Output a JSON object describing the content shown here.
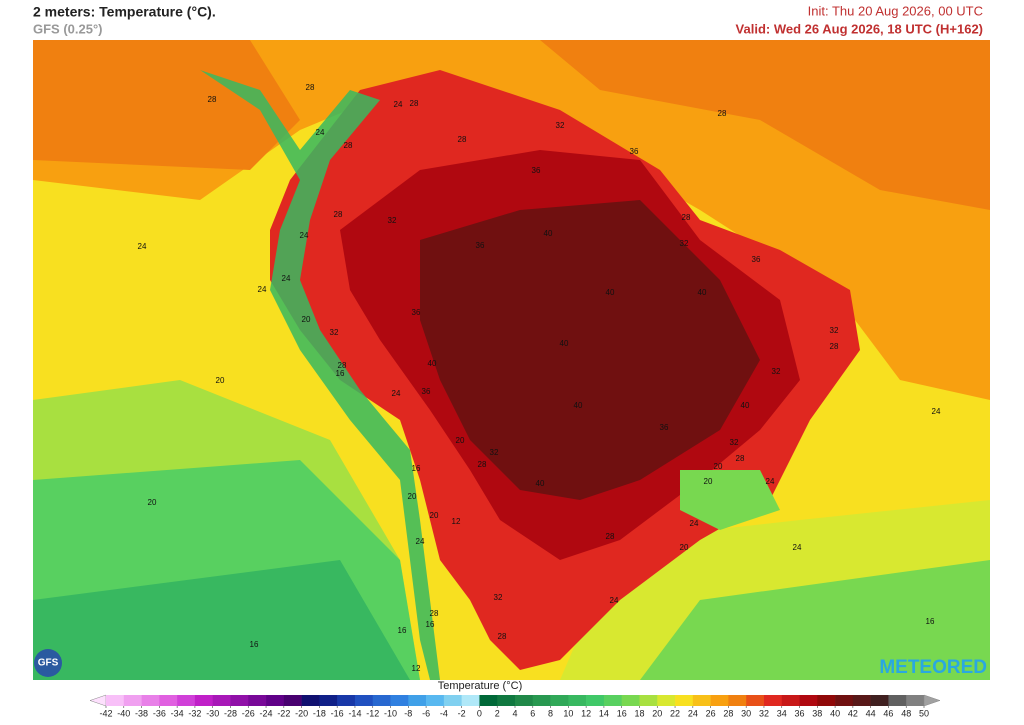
{
  "header": {
    "title": "2 meters: Temperature (°C).",
    "model": "GFS (0.25°)",
    "init": "Init: Thu 20 Aug 2026, 00 UTC",
    "valid": "Valid: Wed 26 Aug 2026, 18 UTC (H+162)"
  },
  "map": {
    "contour_labels": [
      28,
      28,
      24,
      28,
      28,
      32,
      36,
      28,
      24,
      28,
      36,
      28,
      32,
      40,
      36,
      28,
      32,
      36,
      24,
      24,
      24,
      24,
      40,
      40,
      36,
      32,
      20,
      32,
      28,
      40,
      40,
      28,
      16,
      32,
      20,
      36,
      24,
      40,
      40,
      36,
      24,
      32,
      32,
      20,
      28,
      28,
      16,
      20,
      40,
      20,
      24,
      20,
      20,
      20,
      12,
      24,
      28,
      24,
      20,
      24,
      32,
      24,
      28,
      16,
      16,
      16,
      28,
      16,
      12
    ]
  },
  "colorbar": {
    "title": "Temperature (°C)",
    "ticks": [
      -42,
      -40,
      -38,
      -36,
      -34,
      -32,
      -30,
      -28,
      -26,
      -24,
      -22,
      -20,
      -18,
      -16,
      -14,
      -12,
      -10,
      -8,
      -6,
      -4,
      -2,
      0,
      2,
      4,
      6,
      8,
      10,
      12,
      14,
      16,
      18,
      20,
      22,
      24,
      26,
      28,
      30,
      32,
      34,
      36,
      38,
      40,
      42,
      44,
      46,
      48,
      50
    ],
    "colors": [
      "#fde0fd",
      "#f8c0f8",
      "#f0a0f0",
      "#e880e8",
      "#e060e0",
      "#d040d8",
      "#c020c8",
      "#a818b8",
      "#9010a8",
      "#780898",
      "#600088",
      "#480070",
      "#101070",
      "#102088",
      "#1838a8",
      "#2050c0",
      "#2868d0",
      "#3080e0",
      "#40a0e8",
      "#58b8f0",
      "#80d0f0",
      "#b0e8f8",
      "#006838",
      "#107840",
      "#208848",
      "#289850",
      "#30a858",
      "#38b860",
      "#40c868",
      "#58d060",
      "#78d850",
      "#a8e040",
      "#d8e830",
      "#f8e020",
      "#f8c018",
      "#f8a010",
      "#f08010",
      "#e85018",
      "#e02820",
      "#c81818",
      "#b00810",
      "#900808",
      "#701010",
      "#581818",
      "#402020",
      "#606060",
      "#808080",
      "#a0a0a0"
    ]
  },
  "logos": {
    "model": "GFS",
    "brand": "METEORED"
  }
}
